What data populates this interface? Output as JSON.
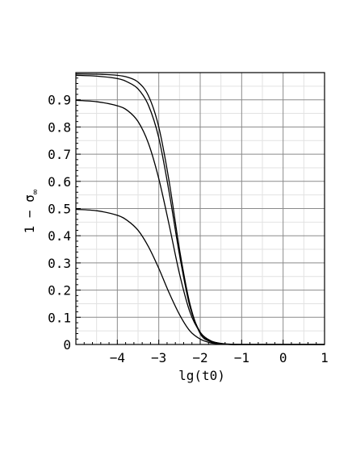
{
  "chart_data": {
    "type": "line",
    "title": "",
    "xlabel": "lg(t0)",
    "ylabel": "1 − σ",
    "ylabel_subscript": "∞",
    "xlim": [
      -5,
      1
    ],
    "ylim": [
      0,
      1
    ],
    "x_ticks": [
      -4,
      -3,
      -2,
      -1,
      0,
      1
    ],
    "x_tick_labels": [
      "−4",
      "−3",
      "−2",
      "−1",
      "0",
      "1"
    ],
    "y_ticks": [
      0,
      0.1,
      0.2,
      0.3,
      0.4,
      0.5,
      0.6,
      0.7,
      0.8,
      0.9
    ],
    "y_tick_labels": [
      "0",
      "0.1",
      "0.2",
      "0.3",
      "0.4",
      "0.5",
      "0.6",
      "0.7",
      "0.8",
      "0.9"
    ],
    "grid": true,
    "legend": "none",
    "line_color": "#000000",
    "major_grid_color": "#8a8a8a",
    "minor_grid_color": "#e2e2e2",
    "series": [
      {
        "x": [
          -5,
          -4.5,
          -4,
          -3.75,
          -3.5,
          -3.25,
          -3,
          -2.75,
          -2.5,
          -2.25,
          -2,
          -1.75,
          -1.5,
          -1.25,
          -1,
          -0.5,
          0,
          0.5,
          1
        ],
        "y": [
          0.995,
          0.994,
          0.99,
          0.983,
          0.965,
          0.915,
          0.8,
          0.6,
          0.35,
          0.15,
          0.04,
          0.01,
          0.002,
          0,
          0,
          0,
          0,
          0,
          0
        ]
      },
      {
        "x": [
          -5,
          -4.5,
          -4,
          -3.75,
          -3.5,
          -3.25,
          -3,
          -2.75,
          -2.5,
          -2.25,
          -2,
          -1.75,
          -1.5,
          -1.25,
          -1,
          -0.5,
          0,
          0.5,
          1
        ],
        "y": [
          0.99,
          0.987,
          0.978,
          0.965,
          0.94,
          0.88,
          0.76,
          0.56,
          0.33,
          0.14,
          0.045,
          0.012,
          0.003,
          0,
          0,
          0,
          0,
          0,
          0
        ]
      },
      {
        "x": [
          -5,
          -4.5,
          -4,
          -3.75,
          -3.5,
          -3.25,
          -3,
          -2.75,
          -2.5,
          -2.25,
          -2,
          -1.75,
          -1.5,
          -1.25,
          -1,
          -0.5,
          0,
          0.5,
          1
        ],
        "y": [
          0.898,
          0.893,
          0.878,
          0.86,
          0.82,
          0.74,
          0.61,
          0.44,
          0.26,
          0.12,
          0.045,
          0.014,
          0.004,
          0.001,
          0,
          0,
          0,
          0,
          0
        ]
      },
      {
        "x": [
          -5,
          -4.5,
          -4,
          -3.75,
          -3.5,
          -3.25,
          -3,
          -2.75,
          -2.5,
          -2.25,
          -2,
          -1.75,
          -1.5,
          -1.25,
          -1,
          -0.5,
          0,
          0.5,
          1
        ],
        "y": [
          0.497,
          0.492,
          0.475,
          0.455,
          0.42,
          0.36,
          0.28,
          0.19,
          0.11,
          0.05,
          0.02,
          0.006,
          0.002,
          0,
          0,
          0,
          0,
          0,
          0
        ]
      }
    ]
  }
}
